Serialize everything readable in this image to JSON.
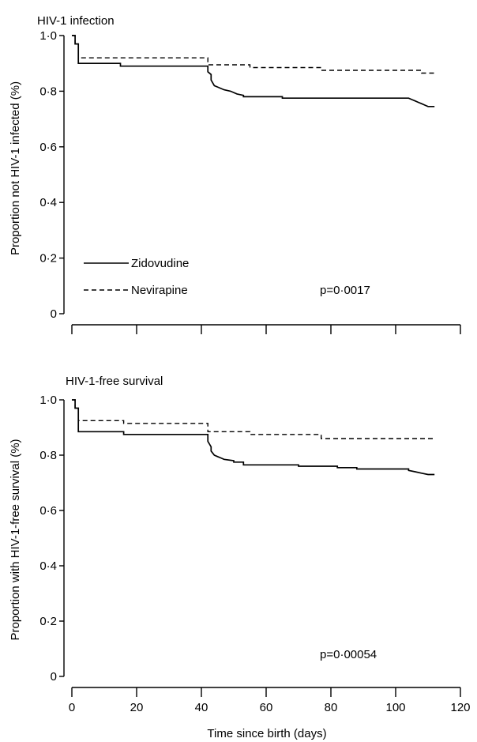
{
  "chart_data": [
    {
      "type": "line",
      "title": "HIV-1 infection",
      "ylabel": "Proportion not HIV-1 infected (%)",
      "xlabel": "",
      "xlim": [
        0,
        120
      ],
      "ylim": [
        0,
        1.0
      ],
      "yticks": [
        "1·0",
        "0·8",
        "0·6",
        "0·4",
        "0·2",
        "0"
      ],
      "xticks": [],
      "grid": false,
      "legend_position": "bottom-left",
      "pvalue": "p=0·0017",
      "series": [
        {
          "name": "Zidovudine",
          "style": "solid",
          "x": [
            0,
            1,
            1,
            2,
            2,
            15,
            15,
            42,
            42,
            43,
            43,
            44,
            45,
            46,
            47,
            49,
            51,
            53,
            53,
            65,
            65,
            104,
            105,
            106,
            107,
            108,
            109,
            110,
            112
          ],
          "y": [
            1.0,
            1.0,
            0.97,
            0.97,
            0.9,
            0.9,
            0.89,
            0.89,
            0.87,
            0.86,
            0.84,
            0.82,
            0.815,
            0.81,
            0.805,
            0.8,
            0.79,
            0.785,
            0.78,
            0.78,
            0.775,
            0.775,
            0.77,
            0.765,
            0.76,
            0.755,
            0.75,
            0.745,
            0.745
          ]
        },
        {
          "name": "Nevirapine",
          "style": "dashed",
          "x": [
            0,
            1,
            1,
            2,
            2,
            42,
            42,
            55,
            55,
            77,
            77,
            108,
            108,
            112
          ],
          "y": [
            1.0,
            1.0,
            0.97,
            0.97,
            0.92,
            0.92,
            0.895,
            0.895,
            0.885,
            0.885,
            0.875,
            0.875,
            0.865,
            0.865
          ]
        }
      ]
    },
    {
      "type": "line",
      "title": "HIV-1-free survival",
      "ylabel": "Proportion with HIV-1-free survival (%)",
      "xlabel": "Time since birth (days)",
      "xlim": [
        0,
        120
      ],
      "ylim": [
        0,
        1.0
      ],
      "yticks": [
        "1·0",
        "0·8",
        "0·6",
        "0·4",
        "0·2",
        "0"
      ],
      "xticks": [
        "0",
        "20",
        "40",
        "60",
        "80",
        "100",
        "120"
      ],
      "grid": false,
      "legend_position": "",
      "pvalue": "p=0·00054",
      "series": [
        {
          "name": "Zidovudine",
          "style": "solid",
          "x": [
            0,
            1,
            1,
            2,
            2,
            16,
            16,
            42,
            42,
            43,
            43,
            44,
            45,
            46,
            47,
            50,
            50,
            53,
            53,
            70,
            70,
            82,
            82,
            88,
            88,
            104,
            104,
            106,
            108,
            110,
            112
          ],
          "y": [
            1.0,
            1.0,
            0.97,
            0.97,
            0.885,
            0.885,
            0.875,
            0.875,
            0.85,
            0.83,
            0.815,
            0.8,
            0.795,
            0.79,
            0.785,
            0.78,
            0.775,
            0.775,
            0.765,
            0.765,
            0.76,
            0.76,
            0.755,
            0.755,
            0.75,
            0.75,
            0.745,
            0.74,
            0.735,
            0.73,
            0.73
          ]
        },
        {
          "name": "Nevirapine",
          "style": "dashed",
          "x": [
            0,
            1,
            1,
            2,
            2,
            16,
            16,
            42,
            42,
            55,
            55,
            77,
            77,
            112
          ],
          "y": [
            1.0,
            1.0,
            0.97,
            0.97,
            0.925,
            0.925,
            0.915,
            0.915,
            0.885,
            0.885,
            0.875,
            0.875,
            0.86,
            0.86
          ]
        }
      ]
    }
  ]
}
